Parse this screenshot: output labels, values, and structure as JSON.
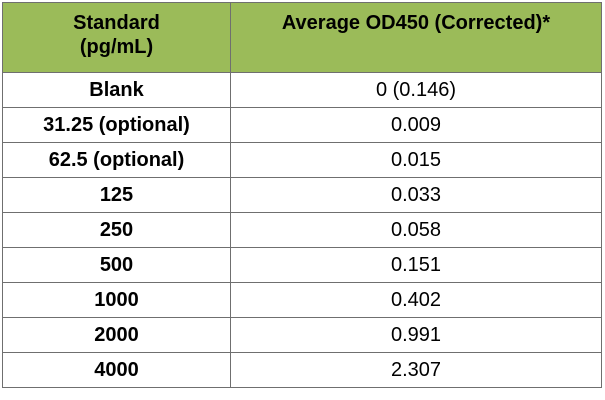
{
  "table": {
    "headers": {
      "standard_line1": "Standard",
      "standard_line2": "(pg/mL)",
      "od": "Average OD450 (Corrected)*"
    },
    "rows": [
      {
        "standard": "Blank",
        "od": "0 (0.146)"
      },
      {
        "standard": "31.25 (optional)",
        "od": "0.009"
      },
      {
        "standard": "62.5 (optional)",
        "od": "0.015"
      },
      {
        "standard": "125",
        "od": "0.033"
      },
      {
        "standard": "250",
        "od": "0.058"
      },
      {
        "standard": "500",
        "od": "0.151"
      },
      {
        "standard": "1000",
        "od": "0.402"
      },
      {
        "standard": "2000",
        "od": "0.991"
      },
      {
        "standard": "4000",
        "od": "2.307"
      }
    ],
    "colors": {
      "header_bg": "#9bbb59",
      "border": "#6f6f6f"
    }
  }
}
